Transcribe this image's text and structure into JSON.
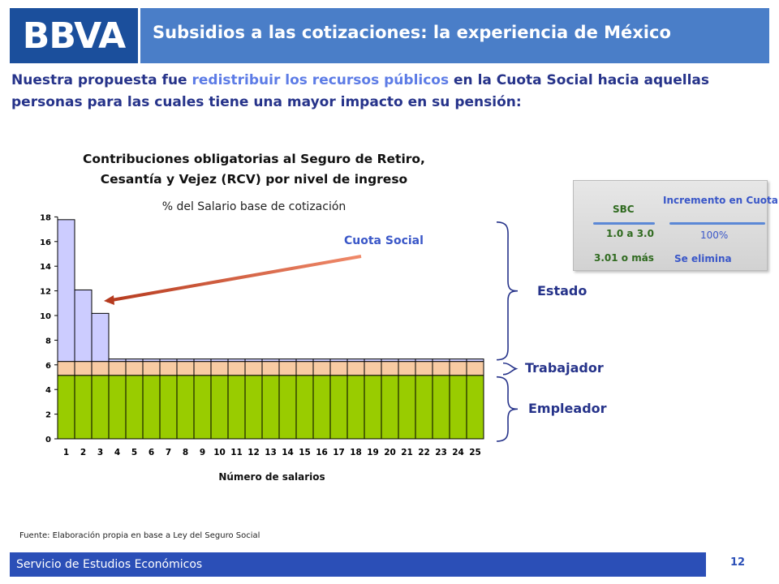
{
  "header": {
    "logo": "BBVA",
    "title": "Subsidios a las cotizaciones: la experiencia de México"
  },
  "intro": {
    "part1": "Nuestra propuesta fue ",
    "highlight": "redistribuir los recursos públicos",
    "part2": " en la Cuota Social hacia aquellas personas para las cuales tiene una mayor impacto en su pensión:"
  },
  "chart_data": {
    "type": "bar",
    "stacked": true,
    "title": "Contribuciones obligatorias al Seguro de Retiro, Cesantía y Vejez (RCV) por nivel de ingreso",
    "subtitle": "% del Salario base de cotización",
    "xlabel": "Número de salarios",
    "ylabel": "",
    "ylim": [
      0,
      18
    ],
    "yticks": [
      0,
      2,
      4,
      6,
      8,
      10,
      12,
      14,
      16,
      18
    ],
    "categories": [
      "1",
      "2",
      "3",
      "4",
      "5",
      "6",
      "7",
      "8",
      "9",
      "10",
      "11",
      "12",
      "13",
      "14",
      "15",
      "16",
      "17",
      "18",
      "19",
      "20",
      "21",
      "22",
      "23",
      "24",
      "25"
    ],
    "series": [
      {
        "name": "Empleador",
        "color": "#99cc00",
        "values": [
          5.15,
          5.15,
          5.15,
          5.15,
          5.15,
          5.15,
          5.15,
          5.15,
          5.15,
          5.15,
          5.15,
          5.15,
          5.15,
          5.15,
          5.15,
          5.15,
          5.15,
          5.15,
          5.15,
          5.15,
          5.15,
          5.15,
          5.15,
          5.15,
          5.15
        ]
      },
      {
        "name": "Trabajador",
        "color": "#f8cba3",
        "values": [
          1.125,
          1.125,
          1.125,
          1.125,
          1.125,
          1.125,
          1.125,
          1.125,
          1.125,
          1.125,
          1.125,
          1.125,
          1.125,
          1.125,
          1.125,
          1.125,
          1.125,
          1.125,
          1.125,
          1.125,
          1.125,
          1.125,
          1.125,
          1.125,
          1.125
        ]
      },
      {
        "name": "Estado",
        "color": "#ccccff",
        "values": [
          11.5,
          5.8,
          3.9,
          0.2,
          0.2,
          0.2,
          0.2,
          0.2,
          0.2,
          0.2,
          0.2,
          0.2,
          0.2,
          0.2,
          0.2,
          0.2,
          0.2,
          0.2,
          0.2,
          0.2,
          0.2,
          0.2,
          0.2,
          0.2,
          0.2
        ]
      }
    ],
    "annotation": "Cuota Social",
    "legend_placement": "right (brace labels)"
  },
  "labels": {
    "estado": "Estado",
    "trabajador": "Trabajador",
    "empleador": "Empleador"
  },
  "info_box": {
    "col1_header": "SBC",
    "col2_header": "Incremento en Cuota Social",
    "rows": [
      {
        "sbc": "1.0 a 3.0",
        "value": "100%"
      },
      {
        "sbc": "3.01 o más",
        "value": "Se elimina"
      }
    ]
  },
  "source": "Fuente: Elaboración propia en base a Ley del Seguro Social",
  "footer": {
    "text": "Servicio de Estudios Económicos",
    "page": "12"
  }
}
